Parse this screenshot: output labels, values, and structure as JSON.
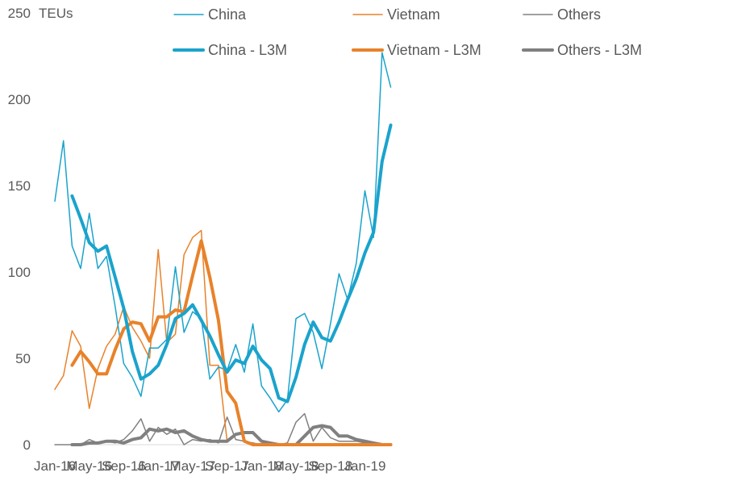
{
  "chart_data": {
    "type": "line",
    "ylabel": "TEUs",
    "ylim": [
      0,
      250
    ],
    "yticks": [
      "0",
      "50",
      "100",
      "150",
      "200",
      "250"
    ],
    "xtick_labels": [
      "Jan-16",
      "May-16",
      "Sep-16",
      "Jan-17",
      "May-17",
      "Sep-17",
      "Jan-18",
      "May-18",
      "Sep-18",
      "Jan-19"
    ],
    "x": [
      "Jan-16",
      "Feb-16",
      "Mar-16",
      "Apr-16",
      "May-16",
      "Jun-16",
      "Jul-16",
      "Aug-16",
      "Sep-16",
      "Oct-16",
      "Nov-16",
      "Dec-16",
      "Jan-17",
      "Feb-17",
      "Mar-17",
      "Apr-17",
      "May-17",
      "Jun-17",
      "Jul-17",
      "Aug-17",
      "Sep-17",
      "Oct-17",
      "Nov-17",
      "Dec-17",
      "Jan-18",
      "Feb-18",
      "Mar-18",
      "Apr-18",
      "May-18",
      "Jun-18",
      "Jul-18",
      "Aug-18",
      "Sep-18",
      "Oct-18",
      "Nov-18",
      "Dec-18",
      "Jan-19",
      "Feb-19",
      "Mar-19",
      "Apr-19"
    ],
    "legend_position": "top",
    "gridlines": false,
    "series": [
      {
        "name": "China",
        "color": "#1aa3cc",
        "width": 1.5,
        "values": [
          141,
          176,
          115,
          102,
          134,
          102,
          109,
          80,
          47,
          39,
          28,
          56,
          56,
          61,
          103,
          65,
          77,
          73,
          38,
          45,
          43,
          58,
          42,
          70,
          34,
          27,
          19,
          26,
          73,
          76,
          65,
          44,
          70,
          99,
          84,
          105,
          147,
          120,
          227,
          207
        ]
      },
      {
        "name": "Vietnam",
        "color": "#e8822a",
        "width": 1.5,
        "values": [
          32,
          40,
          66,
          57,
          21,
          44,
          57,
          64,
          80,
          68,
          60,
          50,
          113,
          59,
          64,
          110,
          120,
          124,
          46,
          46,
          2,
          null,
          null,
          null,
          null,
          null,
          null,
          null,
          null,
          null,
          null,
          null,
          null,
          null,
          null,
          null,
          null,
          null,
          null,
          null
        ]
      },
      {
        "name": "Others",
        "color": "#808080",
        "width": 1.5,
        "values": [
          0,
          0,
          0,
          0,
          3,
          1,
          2,
          1,
          3,
          8,
          15,
          2,
          10,
          6,
          9,
          0,
          3,
          2,
          3,
          1,
          16,
          3,
          2,
          1,
          0,
          0,
          0,
          1,
          13,
          18,
          2,
          10,
          4,
          2,
          2,
          2,
          1,
          1,
          0,
          0
        ]
      },
      {
        "name": "China - L3M",
        "color": "#1aa3cc",
        "width": 4,
        "values": [
          null,
          null,
          144,
          131,
          117,
          112,
          115,
          97,
          79,
          54,
          38,
          41,
          46,
          58,
          73,
          76,
          81,
          72,
          63,
          52,
          42,
          49,
          47,
          57,
          49,
          44,
          27,
          25,
          39,
          58,
          71,
          62,
          60,
          71,
          84,
          96,
          111,
          123,
          164,
          185
        ]
      },
      {
        "name": "Vietnam - L3M",
        "color": "#e8822a",
        "width": 4,
        "values": [
          null,
          null,
          46,
          54,
          48,
          41,
          41,
          55,
          67,
          71,
          70,
          60,
          74,
          74,
          78,
          77,
          98,
          118,
          97,
          72,
          31,
          24,
          2,
          0,
          0,
          0,
          0,
          0,
          0,
          0,
          0,
          0,
          0,
          0,
          0,
          0,
          0,
          0,
          0,
          0
        ]
      },
      {
        "name": "Others - L3M",
        "color": "#808080",
        "width": 4,
        "values": [
          null,
          null,
          0,
          0,
          1,
          1,
          2,
          2,
          1,
          3,
          4,
          9,
          8,
          9,
          7,
          8,
          5,
          3,
          2,
          2,
          2,
          6,
          7,
          7,
          2,
          1,
          0,
          0,
          0,
          5,
          10,
          11,
          10,
          5,
          5,
          3,
          2,
          1,
          0,
          0
        ]
      }
    ]
  }
}
